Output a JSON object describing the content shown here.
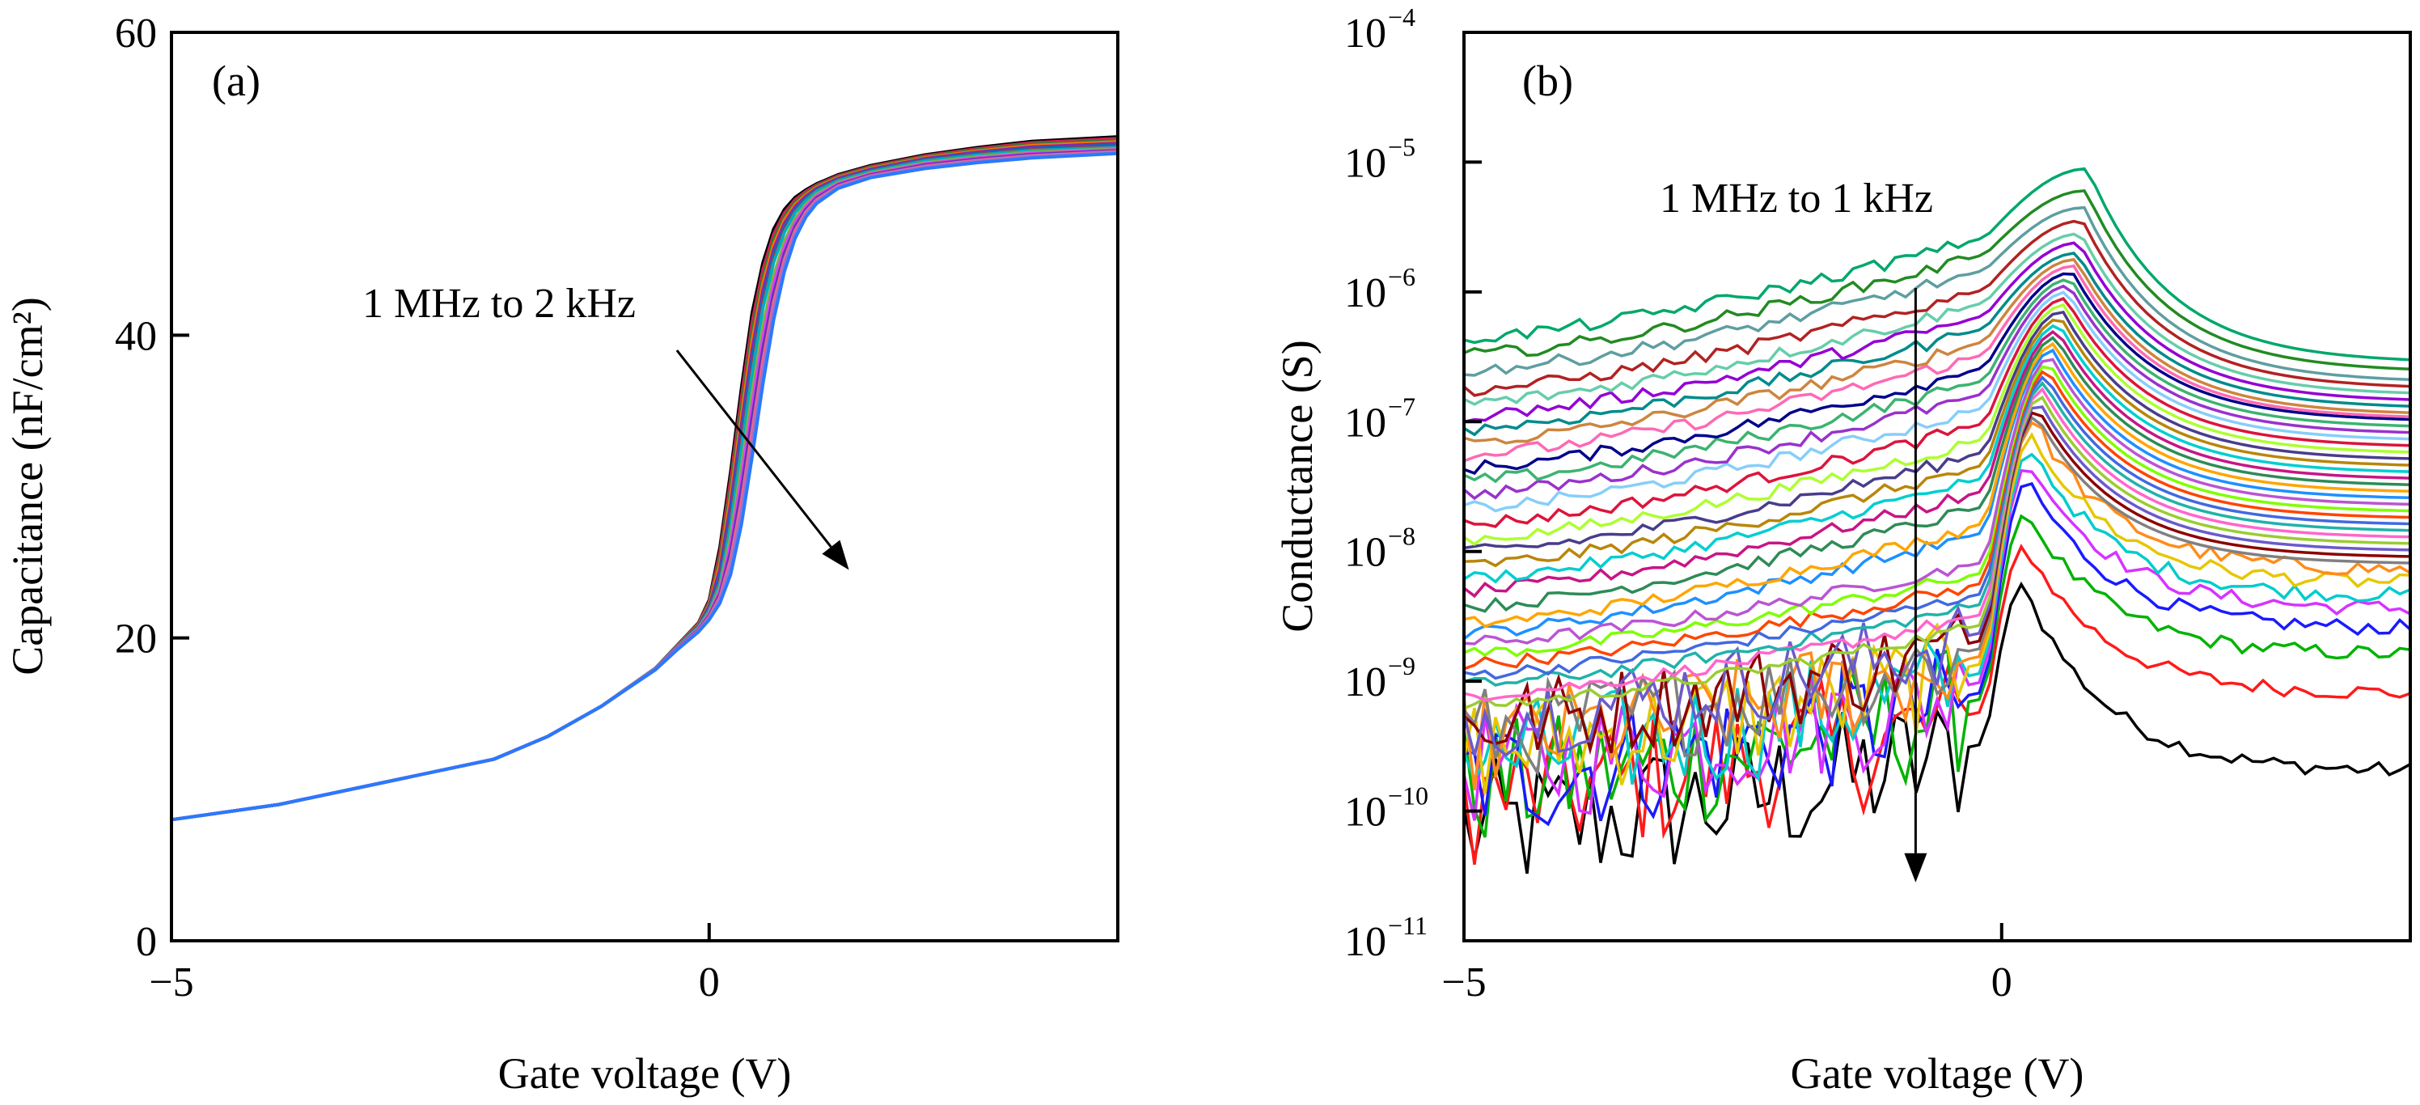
{
  "chart_data": [
    {
      "id": "a",
      "type": "line",
      "panel_label": "(a)",
      "xlabel": "Gate voltage (V)",
      "ylabel": "Capacitance (nF/cm²)",
      "xlim": [
        -5,
        3.8
      ],
      "ylim": [
        0,
        60
      ],
      "xticks": [
        -5,
        0
      ],
      "xtick_labels": [
        "−5",
        "0"
      ],
      "yticks": [
        0,
        20,
        40,
        60
      ],
      "ytick_labels": [
        "0",
        "20",
        "40",
        "60"
      ],
      "grid": false,
      "legend": "none",
      "annotation": {
        "text": "1 MHz to 2 kHz",
        "arrow_from": [
          -0.3,
          39.0
        ],
        "arrow_to": [
          1.3,
          24.5
        ]
      },
      "series_count": 14,
      "shift_range_V": [
        0.15,
        0.62
      ],
      "plateau_range": [
        51.5,
        53.0
      ],
      "colors": [
        "#000000",
        "#d81e5b",
        "#2e7d32",
        "#ff6f00",
        "#8e24aa",
        "#1565c0",
        "#c62828",
        "#00acc1",
        "#7cb342",
        "#e040fb",
        "#5e35b1",
        "#f06292",
        "#9575cd",
        "#2979ff"
      ],
      "x": [
        -5,
        -4,
        -3,
        -2,
        -1.5,
        -1,
        -0.5,
        -0.3,
        -0.1,
        0,
        0.1,
        0.2,
        0.3,
        0.4,
        0.5,
        0.6,
        0.7,
        0.8,
        0.9,
        1.0,
        1.2,
        1.5,
        2.0,
        2.5,
        3.0,
        3.8
      ],
      "series": [
        {
          "values": [
            8.0,
            9.0,
            10.5,
            12.0,
            13.5,
            15.5,
            18.0,
            19.5,
            21.0,
            22.5,
            26.0,
            31.0,
            36.5,
            41.5,
            44.8,
            47.0,
            48.3,
            49.1,
            49.6,
            50.0,
            50.6,
            51.2,
            51.9,
            52.4,
            52.8,
            53.1
          ]
        },
        {
          "values": [
            8.0,
            9.0,
            10.5,
            12.0,
            13.5,
            15.5,
            18.0,
            19.4,
            20.7,
            21.8,
            23.6,
            27.5,
            32.5,
            37.5,
            41.8,
            44.8,
            46.8,
            48.1,
            48.9,
            49.5,
            50.2,
            50.8,
            51.5,
            51.9,
            52.2,
            52.4
          ]
        },
        {
          "values": [
            8.0,
            9.0,
            10.5,
            12.0,
            13.5,
            15.5,
            17.9,
            19.2,
            20.4,
            21.2,
            22.3,
            24.2,
            27.5,
            32.0,
            36.8,
            41.0,
            44.2,
            46.4,
            47.8,
            48.7,
            49.7,
            50.4,
            51.0,
            51.4,
            51.7,
            52.0
          ]
        }
      ]
    },
    {
      "id": "b",
      "type": "line",
      "panel_label": "(b)",
      "xlabel": "Gate voltage (V)",
      "ylabel": "Conductance (S)",
      "yscale": "log",
      "xlim": [
        -5,
        3.8
      ],
      "ylim_log10": [
        -11,
        -4
      ],
      "xticks": [
        -5,
        0
      ],
      "xtick_labels": [
        "−5",
        "0"
      ],
      "ytick_exponents": [
        "−4",
        "−5",
        "−6",
        "−7",
        "−8",
        "−9",
        "−10",
        "−11"
      ],
      "ytick_base": "10",
      "grid": false,
      "legend": "none",
      "annotation": {
        "text": "1 MHz to 1 kHz",
        "arrow_from": [
          -0.8,
          -5.97
        ],
        "arrow_to": [
          -0.8,
          -10.55
        ]
      },
      "series_count": 40,
      "peak_x_range_V": [
        0.2,
        0.8
      ],
      "colors": [
        "#000000",
        "#ff1a1a",
        "#00b300",
        "#1a1aff",
        "#d633ff",
        "#00cccc",
        "#e6c700",
        "#ff8c1a",
        "#808080",
        "#8b0000",
        "#6a5acd",
        "#9acd32",
        "#ff66cc",
        "#20b2aa",
        "#4169e1",
        "#ff4500",
        "#7fff00",
        "#ba55d3",
        "#1e90ff",
        "#ffa500",
        "#2e8b57",
        "#c71585",
        "#00ced1",
        "#b8860b",
        "#483d8b",
        "#adff2f",
        "#dc143c",
        "#87cefa",
        "#9932cc",
        "#3cb371",
        "#00008b",
        "#ff69b4",
        "#cd853f",
        "#008b8b",
        "#9400d3",
        "#66cdaa",
        "#b22222",
        "#5f9ea0",
        "#228b22",
        "#00a86b"
      ],
      "base_values_at_x_min_log10": [
        -10.1,
        -9.85,
        -9.75,
        -9.7,
        -9.62,
        -9.55,
        -9.48,
        -9.42,
        -9.36,
        -9.3,
        -9.24,
        -9.18,
        -9.1,
        -9.02,
        -8.94,
        -8.86,
        -8.78,
        -8.7,
        -8.62,
        -8.55,
        -8.42,
        -8.3,
        -8.2,
        -8.1,
        -8.0,
        -7.9,
        -7.78,
        -7.66,
        -7.55,
        -7.45,
        -7.35,
        -7.25,
        -7.15,
        -7.05,
        -6.95,
        -6.85,
        -6.75,
        -6.6,
        -6.48,
        -6.35
      ],
      "peak_values_log10": [
        -8.25,
        -7.95,
        -7.7,
        -7.45,
        -7.3,
        -7.2,
        -7.1,
        -7.0,
        -6.95,
        -6.9,
        -6.85,
        -6.8,
        -6.75,
        -6.7,
        -6.65,
        -6.6,
        -6.55,
        -6.5,
        -6.45,
        -6.4,
        -6.35,
        -6.3,
        -6.25,
        -6.2,
        -6.15,
        -6.1,
        -6.05,
        -6.0,
        -5.95,
        -5.9,
        -5.85,
        -5.8,
        -5.75,
        -5.7,
        -5.62,
        -5.55,
        -5.45,
        -5.35,
        -5.22,
        -5.05
      ],
      "end_values_at_x_max_log10": [
        -9.7,
        -9.1,
        -8.8,
        -8.6,
        -8.45,
        -8.35,
        -8.25,
        -8.15,
        -8.1,
        -8.05,
        -8.0,
        -7.95,
        -7.9,
        -7.85,
        -7.8,
        -7.75,
        -7.7,
        -7.65,
        -7.6,
        -7.55,
        -7.5,
        -7.45,
        -7.4,
        -7.35,
        -7.3,
        -7.25,
        -7.2,
        -7.15,
        -7.1,
        -7.05,
        -7.0,
        -6.98,
        -6.95,
        -6.9,
        -6.85,
        -6.8,
        -6.75,
        -6.7,
        -6.62,
        -6.55
      ]
    }
  ]
}
